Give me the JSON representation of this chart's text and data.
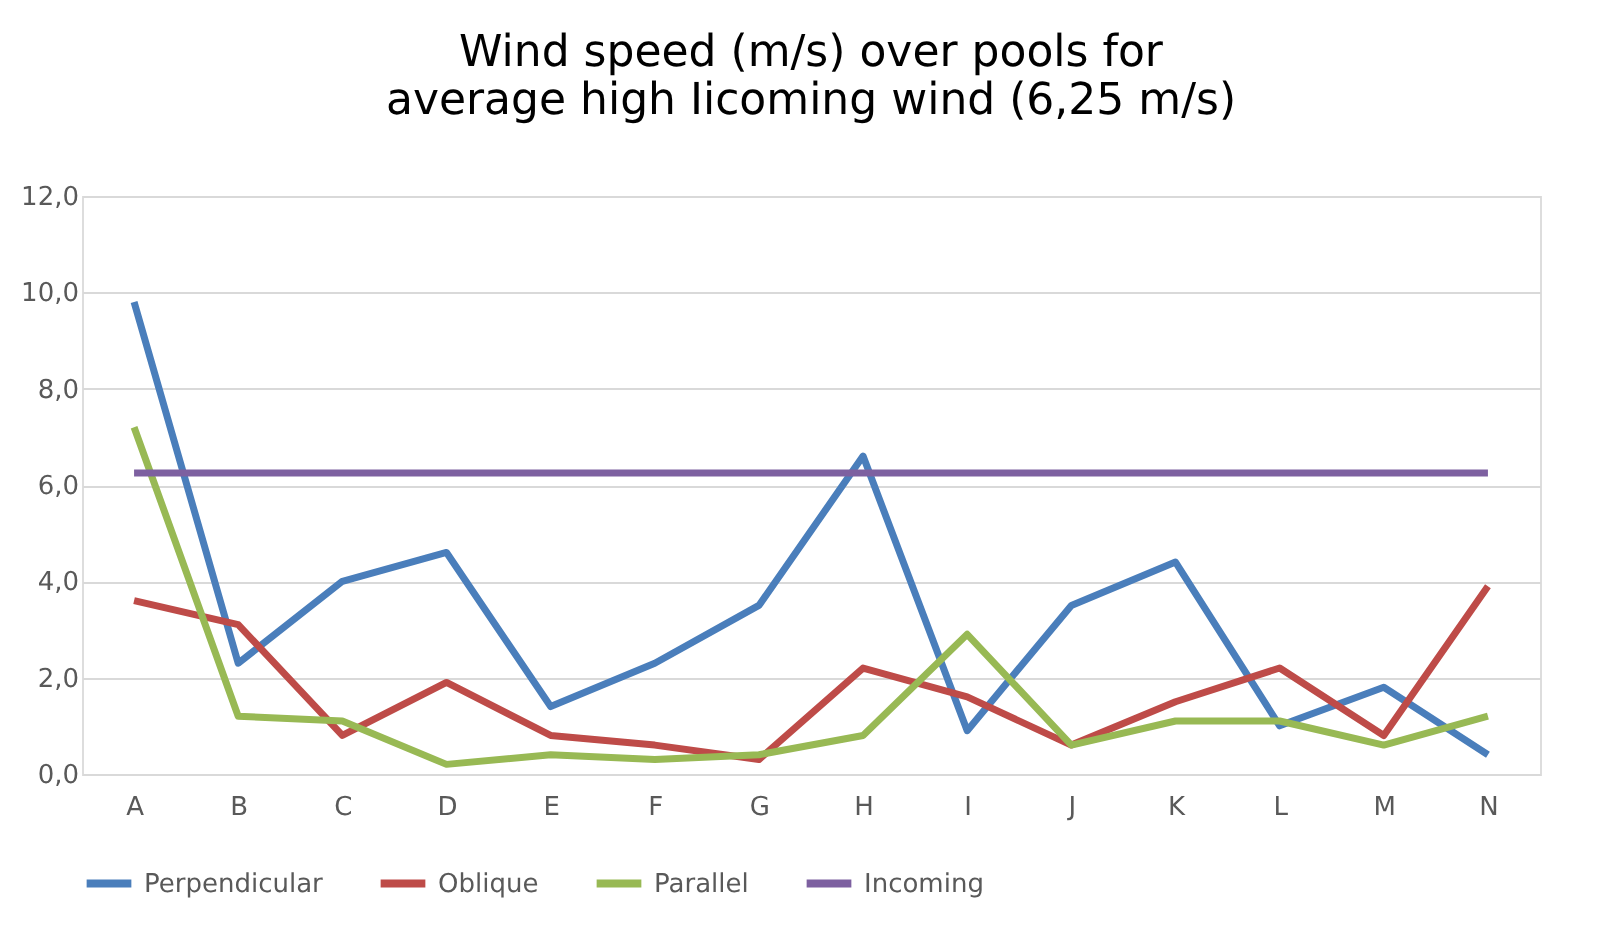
{
  "chart_data": {
    "type": "line",
    "title": "Wind speed (m/s) over pools for average high Iicoming wind (6,25 m/s)",
    "categories": [
      "A",
      "B",
      "C",
      "D",
      "E",
      "F",
      "G",
      "H",
      "I",
      "J",
      "K",
      "L",
      "M",
      "N"
    ],
    "series": [
      {
        "name": "Perpendicular",
        "color": "#4a7ebb",
        "values": [
          9.8,
          2.3,
          4.0,
          4.6,
          1.4,
          2.3,
          3.5,
          6.6,
          0.9,
          3.5,
          4.4,
          1.0,
          1.8,
          0.4
        ]
      },
      {
        "name": "Oblique",
        "color": "#be4b48",
        "values": [
          3.6,
          3.1,
          0.8,
          1.9,
          0.8,
          0.6,
          0.3,
          2.2,
          1.6,
          0.6,
          1.5,
          2.2,
          0.8,
          3.9
        ]
      },
      {
        "name": "Parallel",
        "color": "#98b954",
        "values": [
          7.2,
          1.2,
          1.1,
          0.2,
          0.4,
          0.3,
          0.4,
          0.8,
          2.9,
          0.6,
          1.1,
          1.1,
          0.6,
          1.2
        ]
      },
      {
        "name": "Incoming",
        "color": "#7d60a0",
        "values": [
          6.25,
          6.25,
          6.25,
          6.25,
          6.25,
          6.25,
          6.25,
          6.25,
          6.25,
          6.25,
          6.25,
          6.25,
          6.25,
          6.25
        ]
      }
    ],
    "ylim": [
      0,
      12
    ],
    "yticks": [
      {
        "value": 0,
        "label": "0,0"
      },
      {
        "value": 2,
        "label": "2,0"
      },
      {
        "value": 4,
        "label": "4,0"
      },
      {
        "value": 6,
        "label": "6,0"
      },
      {
        "value": 8,
        "label": "8,0"
      },
      {
        "value": 10,
        "label": "10,0"
      },
      {
        "value": 12,
        "label": "12,0"
      }
    ],
    "grid": "y",
    "legend": "bottom",
    "marker": "none",
    "line_style": "solid"
  }
}
